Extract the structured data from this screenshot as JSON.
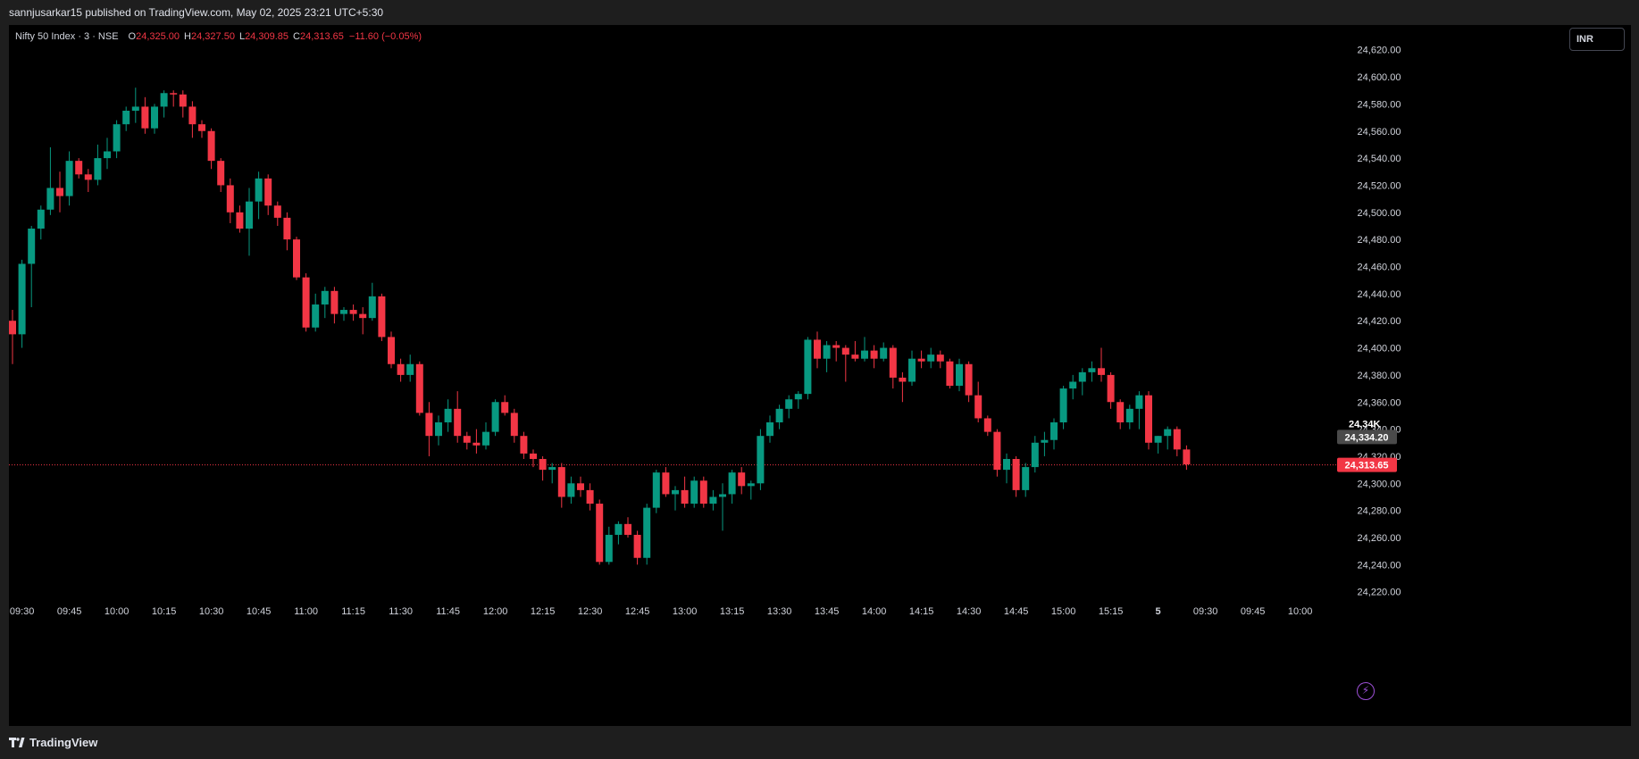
{
  "header": {
    "published_text": "sannjusarkar15 published on TradingView.com, May 02, 2025 23:21 UTC+5:30"
  },
  "legend": {
    "symbol": "Nifty 50 Index · 3 · NSE",
    "open_label": "O",
    "open": "24,325.00",
    "high_label": "H",
    "high": "24,327.50",
    "low_label": "L",
    "low": "24,309.85",
    "close_label": "C",
    "close": "24,313.65",
    "change": "−11.60 (−0.05%)"
  },
  "currency_button": "INR",
  "footer": {
    "brand": "TradingView"
  },
  "icons": {
    "events": "lightning-icon",
    "logo": "tradingview-logo-icon"
  },
  "colors": {
    "up": "#089981",
    "down": "#f23645",
    "background": "#000000",
    "last_price": "#f23645",
    "crosshair_price": "#4a4a4a"
  },
  "chart_data": {
    "type": "candlestick",
    "y_axis": {
      "min": 24210,
      "max": 24630,
      "ticks": [
        "24,220.00",
        "24,240.00",
        "24,260.00",
        "24,280.00",
        "24,300.00",
        "24,320.00",
        "24,340.00",
        "24,360.00",
        "24,380.00",
        "24,400.00",
        "24,420.00",
        "24,440.00",
        "24,460.00",
        "24,480.00",
        "24,500.00",
        "24,520.00",
        "24,540.00",
        "24,560.00",
        "24,580.00",
        "24,600.00",
        "24,620.00"
      ],
      "tick_values": [
        24220,
        24240,
        24260,
        24280,
        24300,
        24320,
        24340,
        24360,
        24380,
        24400,
        24420,
        24440,
        24460,
        24480,
        24500,
        24520,
        24540,
        24560,
        24580,
        24600,
        24620
      ]
    },
    "x_axis": {
      "labels": [
        "09:30",
        "09:45",
        "10:00",
        "10:15",
        "10:30",
        "10:45",
        "11:00",
        "11:15",
        "11:30",
        "11:45",
        "12:00",
        "12:15",
        "12:30",
        "12:45",
        "13:00",
        "13:15",
        "13:30",
        "13:45",
        "14:00",
        "14:15",
        "14:30",
        "14:45",
        "15:00",
        "15:15",
        "5",
        "09:30",
        "09:45",
        "10:00"
      ],
      "label_bar_index": [
        1,
        6,
        11,
        16,
        21,
        26,
        31,
        36,
        41,
        46,
        51,
        56,
        61,
        66,
        71,
        76,
        81,
        86,
        91,
        96,
        101,
        106,
        111,
        116,
        121,
        126,
        131,
        136
      ]
    },
    "last_price": {
      "value": 24313.65,
      "label": "24,313.65"
    },
    "crosshair": {
      "value": 24334.2,
      "label": "24,334.20",
      "short_label": "24.34K"
    },
    "candles": [
      [
        24420,
        24428,
        24388,
        24410
      ],
      [
        24410,
        24465,
        24400,
        24462
      ],
      [
        24462,
        24490,
        24430,
        24488
      ],
      [
        24488,
        24505,
        24480,
        24502
      ],
      [
        24502,
        24548,
        24498,
        24518
      ],
      [
        24518,
        24530,
        24500,
        24512
      ],
      [
        24512,
        24545,
        24505,
        24538
      ],
      [
        24538,
        24540,
        24525,
        24528
      ],
      [
        24528,
        24532,
        24515,
        24524
      ],
      [
        24524,
        24550,
        24520,
        24540
      ],
      [
        24540,
        24555,
        24532,
        24545
      ],
      [
        24545,
        24568,
        24540,
        24565
      ],
      [
        24565,
        24578,
        24560,
        24575
      ],
      [
        24575,
        24592,
        24566,
        24578
      ],
      [
        24578,
        24585,
        24558,
        24562
      ],
      [
        24562,
        24580,
        24558,
        24578
      ],
      [
        24578,
        24590,
        24570,
        24588
      ],
      [
        24588,
        24590,
        24578,
        24587
      ],
      [
        24587,
        24590,
        24570,
        24578
      ],
      [
        24578,
        24582,
        24555,
        24565
      ],
      [
        24565,
        24568,
        24555,
        24560
      ],
      [
        24560,
        24562,
        24532,
        24538
      ],
      [
        24538,
        24540,
        24515,
        24520
      ],
      [
        24520,
        24525,
        24492,
        24500
      ],
      [
        24500,
        24505,
        24485,
        24488
      ],
      [
        24488,
        24518,
        24468,
        24508
      ],
      [
        24508,
        24530,
        24495,
        24525
      ],
      [
        24525,
        24528,
        24498,
        24505
      ],
      [
        24505,
        24508,
        24490,
        24496
      ],
      [
        24496,
        24500,
        24472,
        24480
      ],
      [
        24480,
        24482,
        24450,
        24452
      ],
      [
        24452,
        24455,
        24412,
        24415
      ],
      [
        24415,
        24440,
        24412,
        24432
      ],
      [
        24432,
        24445,
        24422,
        24442
      ],
      [
        24442,
        24445,
        24418,
        24425
      ],
      [
        24425,
        24430,
        24420,
        24428
      ],
      [
        24428,
        24432,
        24420,
        24425
      ],
      [
        24425,
        24430,
        24410,
        24422
      ],
      [
        24422,
        24448,
        24420,
        24438
      ],
      [
        24438,
        24440,
        24405,
        24408
      ],
      [
        24408,
        24412,
        24385,
        24388
      ],
      [
        24388,
        24392,
        24375,
        24380
      ],
      [
        24380,
        24395,
        24375,
        24388
      ],
      [
        24388,
        24390,
        24350,
        24352
      ],
      [
        24352,
        24360,
        24320,
        24335
      ],
      [
        24335,
        24350,
        24328,
        24345
      ],
      [
        24345,
        24362,
        24338,
        24355
      ],
      [
        24355,
        24368,
        24330,
        24335
      ],
      [
        24335,
        24338,
        24325,
        24330
      ],
      [
        24330,
        24340,
        24322,
        24328
      ],
      [
        24328,
        24345,
        24325,
        24338
      ],
      [
        24338,
        24362,
        24335,
        24360
      ],
      [
        24360,
        24365,
        24350,
        24352
      ],
      [
        24352,
        24355,
        24330,
        24335
      ],
      [
        24335,
        24338,
        24318,
        24322
      ],
      [
        24322,
        24325,
        24312,
        24318
      ],
      [
        24318,
        24320,
        24302,
        24310
      ],
      [
        24310,
        24315,
        24300,
        24312
      ],
      [
        24312,
        24315,
        24282,
        24290
      ],
      [
        24290,
        24305,
        24285,
        24300
      ],
      [
        24300,
        24305,
        24290,
        24295
      ],
      [
        24295,
        24300,
        24280,
        24285
      ],
      [
        24285,
        24288,
        24240,
        24242
      ],
      [
        24242,
        24268,
        24240,
        24262
      ],
      [
        24262,
        24272,
        24255,
        24270
      ],
      [
        24270,
        24275,
        24260,
        24262
      ],
      [
        24262,
        24265,
        24240,
        24245
      ],
      [
        24245,
        24285,
        24240,
        24282
      ],
      [
        24282,
        24310,
        24278,
        24308
      ],
      [
        24308,
        24312,
        24290,
        24292
      ],
      [
        24292,
        24298,
        24280,
        24295
      ],
      [
        24295,
        24305,
        24282,
        24285
      ],
      [
        24285,
        24305,
        24282,
        24302
      ],
      [
        24302,
        24305,
        24282,
        24285
      ],
      [
        24285,
        24295,
        24280,
        24290
      ],
      [
        24290,
        24300,
        24265,
        24292
      ],
      [
        24292,
        24310,
        24285,
        24308
      ],
      [
        24308,
        24312,
        24292,
        24298
      ],
      [
        24298,
        24302,
        24288,
        24300
      ],
      [
        24300,
        24340,
        24295,
        24335
      ],
      [
        24335,
        24350,
        24330,
        24345
      ],
      [
        24345,
        24358,
        24340,
        24355
      ],
      [
        24355,
        24365,
        24348,
        24362
      ],
      [
        24362,
        24368,
        24355,
        24366
      ],
      [
        24366,
        24408,
        24362,
        24406
      ],
      [
        24406,
        24412,
        24385,
        24392
      ],
      [
        24392,
        24405,
        24382,
        24402
      ],
      [
        24402,
        24405,
        24390,
        24400
      ],
      [
        24400,
        24402,
        24375,
        24395
      ],
      [
        24395,
        24405,
        24390,
        24392
      ],
      [
        24392,
        24408,
        24390,
        24398
      ],
      [
        24398,
        24402,
        24385,
        24392
      ],
      [
        24392,
        24404,
        24390,
        24400
      ],
      [
        24400,
        24402,
        24370,
        24378
      ],
      [
        24378,
        24382,
        24360,
        24375
      ],
      [
        24375,
        24398,
        24372,
        24392
      ],
      [
        24392,
        24398,
        24385,
        24390
      ],
      [
        24390,
        24400,
        24385,
        24395
      ],
      [
        24395,
        24398,
        24385,
        24390
      ],
      [
        24390,
        24392,
        24370,
        24372
      ],
      [
        24372,
        24392,
        24368,
        24388
      ],
      [
        24388,
        24390,
        24360,
        24365
      ],
      [
        24365,
        24375,
        24345,
        24348
      ],
      [
        24348,
        24350,
        24335,
        24338
      ],
      [
        24338,
        24340,
        24305,
        24310
      ],
      [
        24310,
        24322,
        24300,
        24318
      ],
      [
        24318,
        24320,
        24290,
        24295
      ],
      [
        24295,
        24315,
        24290,
        24312
      ],
      [
        24312,
        24335,
        24308,
        24330
      ],
      [
        24330,
        24338,
        24320,
        24332
      ],
      [
        24332,
        24348,
        24325,
        24345
      ],
      [
        24345,
        24372,
        24340,
        24370
      ],
      [
        24370,
        24380,
        24362,
        24375
      ],
      [
        24375,
        24385,
        24365,
        24382
      ],
      [
        24382,
        24390,
        24375,
        24385
      ],
      [
        24385,
        24400,
        24375,
        24380
      ],
      [
        24380,
        24382,
        24355,
        24360
      ],
      [
        24360,
        24362,
        24340,
        24345
      ],
      [
        24345,
        24358,
        24340,
        24355
      ],
      [
        24355,
        24368,
        24340,
        24365
      ],
      [
        24365,
        24368,
        24325,
        24330
      ],
      [
        24330,
        24335,
        24322,
        24335
      ],
      [
        24335,
        24342,
        24325,
        24340
      ],
      [
        24340,
        24342,
        24320,
        24325
      ],
      [
        24325,
        24328,
        24310,
        24314
      ]
    ]
  }
}
